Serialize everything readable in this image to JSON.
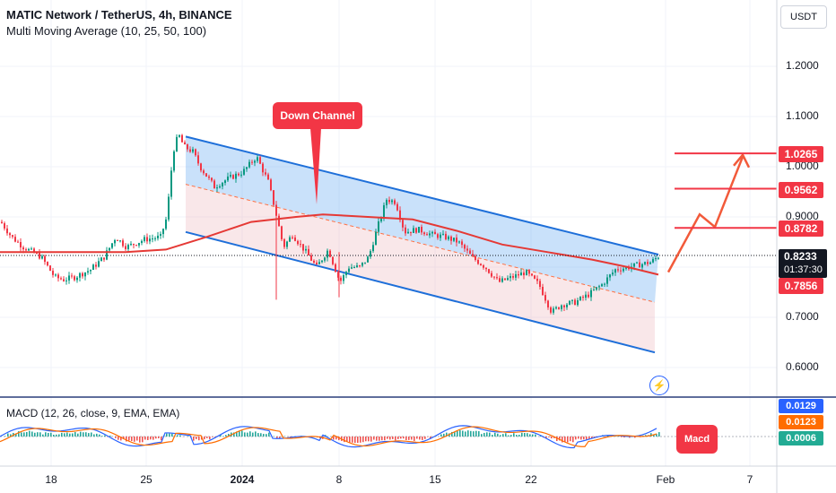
{
  "header": {
    "symbol": "MATIC Network / TetherUS, 4h, BINANCE",
    "indicator": "Multi Moving Average (10, 25, 50, 100)"
  },
  "currency_button": "USDT",
  "annotations": {
    "down_channel": "Down Channel",
    "macd": "Macd"
  },
  "price_axis": {
    "ticks": [
      "1.2000",
      "1.1000",
      "1.0000",
      "0.9000",
      "0.7000",
      "0.6000"
    ]
  },
  "price_tags": {
    "targets": [
      "1.0265",
      "0.9562",
      "0.8782"
    ],
    "current_price": "0.8233",
    "countdown": "01:37:30",
    "ma_value": "0.7856"
  },
  "macd_panel": {
    "title": "MACD (12, 26, close, 9, EMA, EMA)",
    "values": [
      "0.0129",
      "0.0123",
      "0.0006"
    ]
  },
  "time_axis": {
    "labels": [
      "18",
      "25",
      "2024",
      "8",
      "15",
      "22",
      "Feb",
      "7"
    ]
  },
  "colors": {
    "up_candle": "#089981",
    "down_candle": "#f23645",
    "channel": "#1e6fd9",
    "ma": "#e53935",
    "macd_line": "#2962ff",
    "signal_line": "#ff6d00",
    "tag_red": "#f23645",
    "macd_tag": "#2962ff",
    "signal_tag": "#ff6d00",
    "hist_tag": "#22ab94"
  },
  "chart_data": {
    "type": "candlestick",
    "title": "MATIC Network / TetherUS, 4h, BINANCE",
    "y_range": [
      0.56,
      1.27
    ],
    "x_labels": [
      "18",
      "25",
      "2024",
      "8",
      "15",
      "22",
      "Feb",
      "7"
    ],
    "price_path": [
      [
        0,
        0.89
      ],
      [
        12,
        0.86
      ],
      [
        25,
        0.84
      ],
      [
        45,
        0.82
      ],
      [
        60,
        0.78
      ],
      [
        70,
        0.775
      ],
      [
        82,
        0.78
      ],
      [
        100,
        0.795
      ],
      [
        115,
        0.82
      ],
      [
        128,
        0.86
      ],
      [
        140,
        0.84
      ],
      [
        160,
        0.855
      ],
      [
        178,
        0.86
      ],
      [
        185,
        0.9
      ],
      [
        192,
        1.03
      ],
      [
        198,
        1.065
      ],
      [
        204,
        1.04
      ],
      [
        214,
        1.03
      ],
      [
        222,
        1.0
      ],
      [
        238,
        0.96
      ],
      [
        252,
        0.975
      ],
      [
        270,
        0.99
      ],
      [
        285,
        1.02
      ],
      [
        298,
        0.97
      ],
      [
        305,
        0.92
      ],
      [
        315,
        0.84
      ],
      [
        325,
        0.865
      ],
      [
        340,
        0.83
      ],
      [
        352,
        0.8
      ],
      [
        365,
        0.835
      ],
      [
        378,
        0.77
      ],
      [
        388,
        0.8
      ],
      [
        400,
        0.8
      ],
      [
        410,
        0.82
      ],
      [
        420,
        0.88
      ],
      [
        430,
        0.935
      ],
      [
        440,
        0.93
      ],
      [
        450,
        0.87
      ],
      [
        465,
        0.875
      ],
      [
        480,
        0.865
      ],
      [
        495,
        0.86
      ],
      [
        510,
        0.85
      ],
      [
        525,
        0.82
      ],
      [
        540,
        0.8
      ],
      [
        555,
        0.77
      ],
      [
        570,
        0.78
      ],
      [
        585,
        0.79
      ],
      [
        600,
        0.765
      ],
      [
        614,
        0.71
      ],
      [
        625,
        0.725
      ],
      [
        640,
        0.73
      ],
      [
        655,
        0.745
      ],
      [
        670,
        0.765
      ],
      [
        685,
        0.795
      ],
      [
        700,
        0.8
      ],
      [
        712,
        0.805
      ],
      [
        725,
        0.81
      ],
      [
        734,
        0.823
      ]
    ],
    "moving_average": [
      [
        0,
        0.83
      ],
      [
        60,
        0.83
      ],
      [
        140,
        0.83
      ],
      [
        185,
        0.835
      ],
      [
        230,
        0.86
      ],
      [
        280,
        0.89
      ],
      [
        330,
        0.9
      ],
      [
        360,
        0.905
      ],
      [
        410,
        0.9
      ],
      [
        460,
        0.895
      ],
      [
        510,
        0.872
      ],
      [
        560,
        0.845
      ],
      [
        610,
        0.83
      ],
      [
        660,
        0.815
      ],
      [
        700,
        0.8
      ],
      [
        734,
        0.785
      ]
    ],
    "current_price": 0.8233,
    "moving_average_value": 0.7856,
    "channel": {
      "upper": [
        [
          207,
          1.06
        ],
        [
          734,
          0.825
        ]
      ],
      "lower": [
        [
          207,
          0.87
        ],
        [
          730,
          0.63
        ]
      ],
      "mid": [
        [
          207,
          0.965
        ],
        [
          730,
          0.73
        ]
      ]
    },
    "projection": [
      [
        745,
        0.79
      ],
      [
        780,
        0.905
      ],
      [
        797,
        0.88
      ],
      [
        828,
        1.02
      ]
    ],
    "target_levels": [
      1.0265,
      0.9562,
      0.8782
    ],
    "macd": {
      "title": "MACD (12, 26, close, 9, EMA, EMA)",
      "macd": 0.0129,
      "signal": 0.0123,
      "histogram": 0.0006
    }
  }
}
